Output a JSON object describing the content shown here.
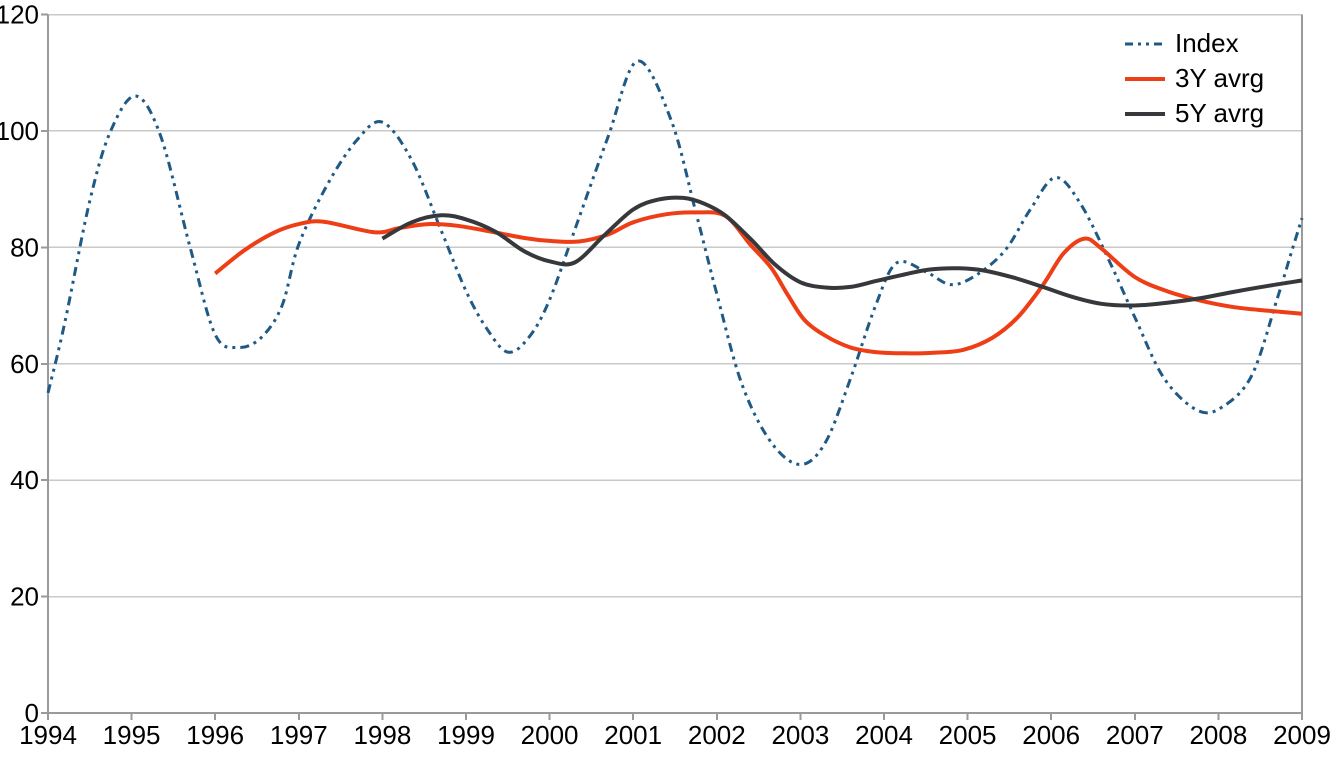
{
  "chart_data": {
    "type": "line",
    "title": "",
    "background_color": "#ffffff",
    "grid": "horizontal",
    "grid_color": "#c9c9c9",
    "axis_color": "#9a9a9a",
    "text_color": "#000000",
    "x_axis": {
      "categories": [
        "1994",
        "1995",
        "1996",
        "1997",
        "1998",
        "1999",
        "2000",
        "2001",
        "2002",
        "2003",
        "2004",
        "2005",
        "2006",
        "2007",
        "2008",
        "2009"
      ]
    },
    "y_axis": {
      "min": 0,
      "max": 120,
      "step": 20,
      "tick_labels": [
        "0",
        "20",
        "40",
        "60",
        "80",
        "100",
        "120"
      ]
    },
    "legend": {
      "position": "top-right",
      "items": [
        "Index",
        "3Y avrg",
        "5Y avrg"
      ]
    },
    "series": [
      {
        "key": "index",
        "name": "Index",
        "color": "#1e5a85",
        "line_style": "dash-dot-dot",
        "stroke_width": 3,
        "values_by_year": [
          55,
          106,
          64.5,
          80.5,
          101.5,
          72.5,
          71,
          112,
          72,
          42.7,
          77,
          75,
          92,
          68,
          52.5,
          85
        ],
        "samples": {
          "x": [
            1994,
            1994.2,
            1994.5,
            1994.75,
            1995.05,
            1995.35,
            1995.7,
            1996,
            1996.28,
            1996.55,
            1996.8,
            1997,
            1997.35,
            1997.7,
            1998,
            1998.35,
            1998.7,
            1999,
            1999.25,
            1999.5,
            1999.75,
            2000,
            2000.35,
            2000.7,
            2001.05,
            2001.45,
            2001.75,
            2002,
            2002.3,
            2002.65,
            2003,
            2003.3,
            2003.6,
            2003.9,
            2004.15,
            2004.5,
            2004.8,
            2005.1,
            2005.45,
            2005.75,
            2006.05,
            2006.35,
            2006.7,
            2007,
            2007.35,
            2007.75,
            2008.05,
            2008.4,
            2008.7,
            2008.87,
            2009
          ],
          "y": [
            55,
            67,
            88,
            100,
            106,
            99,
            80,
            65,
            62.8,
            64.5,
            70,
            80.5,
            91,
            98.5,
            101.5,
            95,
            83,
            72.5,
            66,
            62,
            64.5,
            71,
            85,
            99,
            112,
            102,
            86,
            72,
            56.5,
            46.5,
            42.7,
            46.5,
            57.5,
            70,
            77.3,
            75.8,
            73.6,
            75.2,
            79.5,
            86.5,
            92,
            87.5,
            77.5,
            68,
            57.5,
            52,
            52.6,
            58,
            71,
            79,
            85
          ]
        }
      },
      {
        "key": "avg3y",
        "name": "3Y avrg",
        "color": "#ee3e16",
        "line_style": "solid",
        "stroke_width": 4,
        "values_by_year": [
          null,
          null,
          75.5,
          84,
          83.5,
          83,
          81.1,
          84.5,
          85.5,
          68,
          62,
          62.5,
          79.5,
          74.9,
          69.9,
          68.6
        ],
        "samples": {
          "x": [
            1996,
            1996.35,
            1996.7,
            1997,
            1997.3,
            1997.9,
            1998.2,
            1998.55,
            1998.9,
            1999.3,
            1999.7,
            2000,
            2000.35,
            2000.7,
            2001,
            2001.4,
            2001.75,
            2002.1,
            2002.4,
            2002.65,
            2002.85,
            2003.05,
            2003.3,
            2003.6,
            2003.9,
            2004.25,
            2004.6,
            2004.95,
            2005.3,
            2005.6,
            2005.9,
            2006.15,
            2006.4,
            2006.6,
            2007,
            2007.4,
            2007.8,
            2008.2,
            2008.6,
            2009
          ],
          "y": [
            75.5,
            79.5,
            82.5,
            84,
            84.4,
            82.6,
            83.3,
            84,
            83.7,
            82.7,
            81.6,
            81.1,
            81,
            82.2,
            84.3,
            85.7,
            86,
            85.4,
            80.5,
            76.5,
            71.8,
            67.5,
            64.8,
            62.8,
            62,
            61.8,
            61.9,
            62.4,
            64.5,
            68,
            73.5,
            79,
            81.5,
            79.8,
            74.9,
            72.4,
            70.8,
            69.7,
            69.1,
            68.6
          ]
        }
      },
      {
        "key": "avg5y",
        "name": "5Y avrg",
        "color": "#36383b",
        "line_style": "solid",
        "stroke_width": 4,
        "values_by_year": [
          null,
          null,
          null,
          null,
          81.5,
          84.8,
          77.6,
          86.5,
          86,
          74,
          75,
          76,
          72,
          70,
          72.3,
          74.3
        ],
        "samples": {
          "x": [
            1998,
            1998.35,
            1998.7,
            1999,
            1999.35,
            1999.7,
            2000,
            2000.3,
            2000.65,
            2001,
            2001.3,
            2001.6,
            2001.85,
            2002.1,
            2002.4,
            2002.7,
            2003,
            2003.3,
            2003.6,
            2003.9,
            2004.2,
            2004.55,
            2004.9,
            2005.2,
            2005.55,
            2005.9,
            2006.25,
            2006.6,
            2007,
            2007.4,
            2007.8,
            2008.2,
            2008.6,
            2009
          ],
          "y": [
            81.5,
            84.3,
            85.5,
            84.8,
            82.7,
            79.3,
            77.6,
            77.4,
            82,
            86.5,
            88.2,
            88.5,
            87.5,
            85.5,
            81.5,
            77,
            74,
            73.1,
            73.2,
            74.2,
            75.2,
            76.2,
            76.4,
            76,
            74.8,
            73.2,
            71.5,
            70.3,
            70,
            70.5,
            71.3,
            72.4,
            73.4,
            74.3
          ]
        }
      }
    ]
  }
}
